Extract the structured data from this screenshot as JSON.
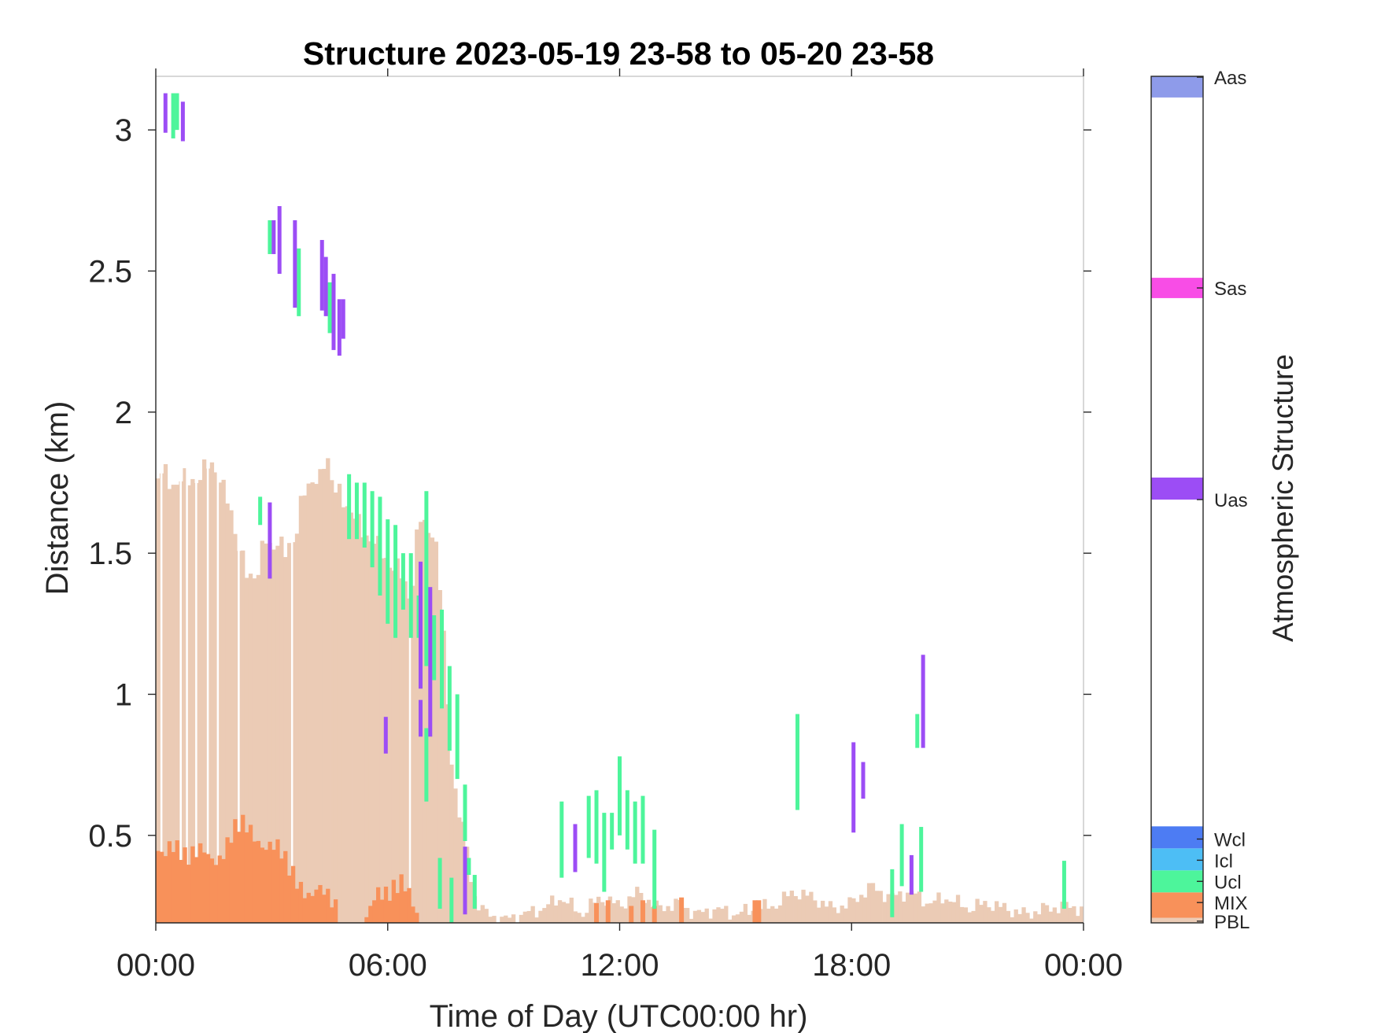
{
  "chart_data": {
    "type": "heatmap",
    "title": "Structure 2023-05-19 23-58 to 05-20 23-58",
    "xlabel": "Time of Day (UTC00:00 hr)",
    "ylabel": "Distance (km)",
    "xlim": [
      0,
      24
    ],
    "ylim": [
      0.19,
      3.19
    ],
    "x_ticks": [
      0,
      6,
      12,
      18,
      24
    ],
    "x_tick_labels": [
      "00:00",
      "06:00",
      "12:00",
      "18:00",
      "00:00"
    ],
    "y_ticks": [
      0.5,
      1,
      1.5,
      2,
      2.5,
      3
    ],
    "y_tick_labels": [
      "0.5",
      "1",
      "1.5",
      "2",
      "2.5",
      "3"
    ],
    "grid": false,
    "colorbar": {
      "label": "Atmospheric Structure",
      "entries": [
        {
          "name": "PBL",
          "color": "#EBCBB5"
        },
        {
          "name": "MIX",
          "color": "#F8915A"
        },
        {
          "name": "Ucl",
          "color": "#4DF59B"
        },
        {
          "name": "Icl",
          "color": "#4DBEF5"
        },
        {
          "name": "Wcl",
          "color": "#4D7CF3"
        },
        {
          "name": "Uas",
          "color": "#9C4DF5"
        },
        {
          "name": "Sas",
          "color": "#F84DE6"
        },
        {
          "name": "Aas",
          "color": "#8E9BEA"
        }
      ]
    },
    "pbl_profile": [
      [
        0.0,
        1.76
      ],
      [
        0.2,
        1.78
      ],
      [
        0.4,
        1.75
      ],
      [
        0.6,
        1.76
      ],
      [
        0.8,
        1.75
      ],
      [
        1.0,
        1.77
      ],
      [
        1.2,
        1.78
      ],
      [
        1.4,
        1.81
      ],
      [
        1.6,
        1.81
      ],
      [
        1.8,
        1.7
      ],
      [
        2.0,
        1.6
      ],
      [
        2.2,
        1.53
      ],
      [
        2.4,
        1.38
      ],
      [
        2.6,
        1.42
      ],
      [
        2.8,
        1.58
      ],
      [
        3.0,
        1.47
      ],
      [
        3.2,
        1.58
      ],
      [
        3.4,
        1.5
      ],
      [
        3.6,
        1.52
      ],
      [
        3.8,
        1.76
      ],
      [
        4.0,
        1.72
      ],
      [
        4.2,
        1.75
      ],
      [
        4.4,
        1.88
      ],
      [
        4.6,
        1.7
      ],
      [
        4.8,
        1.72
      ],
      [
        5.0,
        1.66
      ],
      [
        5.2,
        1.6
      ],
      [
        5.4,
        1.58
      ],
      [
        5.6,
        1.55
      ],
      [
        5.8,
        1.5
      ],
      [
        6.0,
        1.48
      ],
      [
        6.2,
        1.45
      ],
      [
        6.4,
        1.4
      ],
      [
        6.6,
        1.35
      ],
      [
        6.8,
        1.62
      ],
      [
        7.0,
        1.58
      ],
      [
        7.2,
        1.6
      ],
      [
        7.4,
        1.3
      ],
      [
        7.6,
        0.85
      ],
      [
        7.8,
        0.6
      ],
      [
        8.0,
        0.5
      ],
      [
        8.2,
        0.3
      ],
      [
        8.4,
        0.24
      ],
      [
        8.6,
        0.22
      ],
      [
        9.0,
        0.2
      ],
      [
        9.5,
        0.22
      ],
      [
        10.0,
        0.24
      ],
      [
        10.5,
        0.28
      ],
      [
        11.0,
        0.22
      ],
      [
        11.5,
        0.28
      ],
      [
        12.0,
        0.25
      ],
      [
        12.5,
        0.3
      ],
      [
        13.0,
        0.24
      ],
      [
        13.5,
        0.26
      ],
      [
        14.0,
        0.22
      ],
      [
        14.5,
        0.24
      ],
      [
        15.0,
        0.22
      ],
      [
        15.5,
        0.24
      ],
      [
        16.0,
        0.25
      ],
      [
        16.5,
        0.3
      ],
      [
        17.0,
        0.28
      ],
      [
        17.5,
        0.24
      ],
      [
        18.0,
        0.26
      ],
      [
        18.5,
        0.32
      ],
      [
        19.0,
        0.28
      ],
      [
        19.5,
        0.3
      ],
      [
        20.0,
        0.26
      ],
      [
        20.5,
        0.28
      ],
      [
        21.0,
        0.24
      ],
      [
        21.5,
        0.26
      ],
      [
        22.0,
        0.24
      ],
      [
        22.5,
        0.22
      ],
      [
        23.0,
        0.24
      ],
      [
        23.5,
        0.25
      ],
      [
        24.0,
        0.24
      ]
    ],
    "mix_profile": [
      [
        0.0,
        0.45
      ],
      [
        0.2,
        0.43
      ],
      [
        0.4,
        0.47
      ],
      [
        0.6,
        0.45
      ],
      [
        0.8,
        0.42
      ],
      [
        1.0,
        0.44
      ],
      [
        1.2,
        0.46
      ],
      [
        1.4,
        0.42
      ],
      [
        1.6,
        0.4
      ],
      [
        1.8,
        0.45
      ],
      [
        2.0,
        0.52
      ],
      [
        2.2,
        0.55
      ],
      [
        2.4,
        0.53
      ],
      [
        2.6,
        0.48
      ],
      [
        2.8,
        0.45
      ],
      [
        3.0,
        0.47
      ],
      [
        3.2,
        0.46
      ],
      [
        3.4,
        0.4
      ],
      [
        3.6,
        0.35
      ],
      [
        3.8,
        0.3
      ],
      [
        4.0,
        0.28
      ],
      [
        4.2,
        0.32
      ],
      [
        4.4,
        0.3
      ],
      [
        4.6,
        0.26
      ],
      [
        4.8,
        0.2
      ],
      [
        5.0,
        0.19
      ],
      [
        5.4,
        0.19
      ],
      [
        5.7,
        0.3
      ],
      [
        6.0,
        0.29
      ],
      [
        6.2,
        0.32
      ],
      [
        6.4,
        0.34
      ],
      [
        6.6,
        0.28
      ],
      [
        6.8,
        0.2
      ],
      [
        7.0,
        0.19
      ]
    ],
    "mix_spikes": [
      {
        "x": 11.4,
        "ymax": 0.26
      },
      {
        "x": 11.7,
        "ymax": 0.27
      },
      {
        "x": 12.3,
        "ymax": 0.25
      },
      {
        "x": 12.6,
        "ymax": 0.27
      },
      {
        "x": 12.9,
        "ymax": 0.25
      },
      {
        "x": 13.6,
        "ymax": 0.28
      },
      {
        "x": 15.5,
        "ymax": 0.27
      },
      {
        "x": 15.6,
        "ymax": 0.27
      }
    ],
    "ucl_segments": [
      {
        "x": 0.45,
        "y0": 2.97,
        "y1": 3.13
      },
      {
        "x": 0.55,
        "y0": 3.0,
        "y1": 3.13
      },
      {
        "x": 2.95,
        "y0": 2.56,
        "y1": 2.68
      },
      {
        "x": 3.7,
        "y0": 2.34,
        "y1": 2.58
      },
      {
        "x": 4.5,
        "y0": 2.28,
        "y1": 2.46
      },
      {
        "x": 2.7,
        "y0": 1.6,
        "y1": 1.7
      },
      {
        "x": 5.0,
        "y0": 1.55,
        "y1": 1.78
      },
      {
        "x": 5.2,
        "y0": 1.55,
        "y1": 1.75
      },
      {
        "x": 5.4,
        "y0": 1.52,
        "y1": 1.75
      },
      {
        "x": 5.6,
        "y0": 1.45,
        "y1": 1.72
      },
      {
        "x": 5.8,
        "y0": 1.35,
        "y1": 1.7
      },
      {
        "x": 6.0,
        "y0": 1.25,
        "y1": 1.62
      },
      {
        "x": 6.2,
        "y0": 1.2,
        "y1": 1.6
      },
      {
        "x": 6.4,
        "y0": 1.3,
        "y1": 1.5
      },
      {
        "x": 6.6,
        "y0": 1.2,
        "y1": 1.5
      },
      {
        "x": 6.8,
        "y0": 1.2,
        "y1": 1.35
      },
      {
        "x": 7.0,
        "y0": 1.1,
        "y1": 1.72
      },
      {
        "x": 7.2,
        "y0": 1.05,
        "y1": 1.28
      },
      {
        "x": 7.4,
        "y0": 0.95,
        "y1": 1.3
      },
      {
        "x": 7.6,
        "y0": 0.8,
        "y1": 1.1
      },
      {
        "x": 7.8,
        "y0": 0.7,
        "y1": 1.0
      },
      {
        "x": 8.0,
        "y0": 0.48,
        "y1": 0.68
      },
      {
        "x": 8.1,
        "y0": 0.36,
        "y1": 0.42
      },
      {
        "x": 8.25,
        "y0": 0.24,
        "y1": 0.36
      },
      {
        "x": 7.0,
        "y0": 0.62,
        "y1": 0.88
      },
      {
        "x": 7.35,
        "y0": 0.24,
        "y1": 0.42
      },
      {
        "x": 7.65,
        "y0": 0.19,
        "y1": 0.35
      },
      {
        "x": 10.5,
        "y0": 0.35,
        "y1": 0.62
      },
      {
        "x": 11.2,
        "y0": 0.42,
        "y1": 0.64
      },
      {
        "x": 11.4,
        "y0": 0.4,
        "y1": 0.66
      },
      {
        "x": 11.6,
        "y0": 0.3,
        "y1": 0.58
      },
      {
        "x": 11.8,
        "y0": 0.45,
        "y1": 0.58
      },
      {
        "x": 12.0,
        "y0": 0.5,
        "y1": 0.78
      },
      {
        "x": 12.2,
        "y0": 0.45,
        "y1": 0.66
      },
      {
        "x": 12.4,
        "y0": 0.4,
        "y1": 0.62
      },
      {
        "x": 12.6,
        "y0": 0.4,
        "y1": 0.64
      },
      {
        "x": 12.9,
        "y0": 0.24,
        "y1": 0.52
      },
      {
        "x": 16.6,
        "y0": 0.59,
        "y1": 0.93
      },
      {
        "x": 19.05,
        "y0": 0.21,
        "y1": 0.38
      },
      {
        "x": 19.3,
        "y0": 0.32,
        "y1": 0.54
      },
      {
        "x": 19.7,
        "y0": 0.81,
        "y1": 0.93
      },
      {
        "x": 19.8,
        "y0": 0.3,
        "y1": 0.53
      },
      {
        "x": 23.5,
        "y0": 0.24,
        "y1": 0.41
      }
    ],
    "uas_segments": [
      {
        "x": 0.25,
        "y0": 2.99,
        "y1": 3.13
      },
      {
        "x": 0.7,
        "y0": 2.96,
        "y1": 3.1
      },
      {
        "x": 3.2,
        "y0": 2.49,
        "y1": 2.73
      },
      {
        "x": 3.6,
        "y0": 2.37,
        "y1": 2.68
      },
      {
        "x": 3.05,
        "y0": 2.56,
        "y1": 2.68
      },
      {
        "x": 4.3,
        "y0": 2.36,
        "y1": 2.61
      },
      {
        "x": 4.4,
        "y0": 2.34,
        "y1": 2.55
      },
      {
        "x": 4.6,
        "y0": 2.22,
        "y1": 2.49
      },
      {
        "x": 4.75,
        "y0": 2.2,
        "y1": 2.4
      },
      {
        "x": 4.85,
        "y0": 2.26,
        "y1": 2.4
      },
      {
        "x": 2.95,
        "y0": 1.41,
        "y1": 1.68
      },
      {
        "x": 5.95,
        "y0": 0.79,
        "y1": 0.92
      },
      {
        "x": 6.85,
        "y0": 1.02,
        "y1": 1.47
      },
      {
        "x": 6.85,
        "y0": 0.85,
        "y1": 0.98
      },
      {
        "x": 7.1,
        "y0": 0.85,
        "y1": 1.38
      },
      {
        "x": 10.85,
        "y0": 0.37,
        "y1": 0.54
      },
      {
        "x": 8.0,
        "y0": 0.22,
        "y1": 0.46
      },
      {
        "x": 18.05,
        "y0": 0.51,
        "y1": 0.83
      },
      {
        "x": 18.3,
        "y0": 0.63,
        "y1": 0.76
      },
      {
        "x": 19.55,
        "y0": 0.29,
        "y1": 0.43
      },
      {
        "x": 19.85,
        "y0": 0.81,
        "y1": 1.14
      }
    ]
  }
}
